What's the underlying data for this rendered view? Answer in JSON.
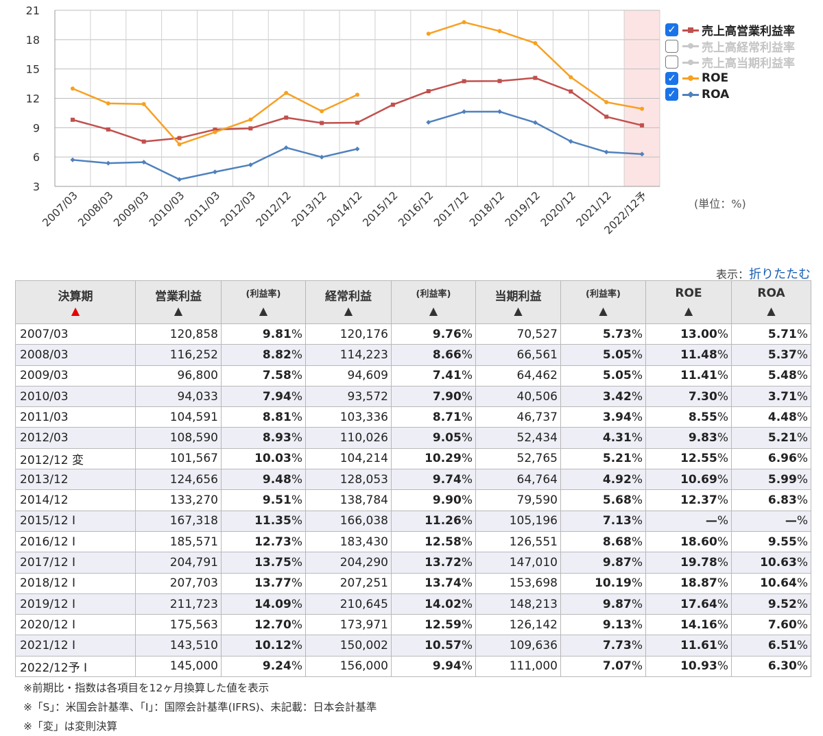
{
  "chart_data": {
    "type": "line",
    "categories": [
      "2007/03",
      "2008/03",
      "2009/03",
      "2010/03",
      "2011/03",
      "2012/03",
      "2012/12",
      "2013/12",
      "2014/12",
      "2015/12",
      "2016/12",
      "2017/12",
      "2018/12",
      "2019/12",
      "2020/12",
      "2021/12",
      "2022/12予"
    ],
    "ylim": [
      3,
      21
    ],
    "yticks": [
      3,
      6,
      9,
      12,
      15,
      18,
      21
    ],
    "grid": true,
    "highlight_category": "2022/12予",
    "series": [
      {
        "name": "売上高営業利益率",
        "color": "#c0504d",
        "visible": true,
        "values": [
          9.81,
          8.82,
          7.58,
          7.94,
          8.81,
          8.93,
          10.03,
          9.48,
          9.51,
          11.35,
          12.73,
          13.75,
          13.77,
          14.09,
          12.7,
          10.12,
          9.24
        ]
      },
      {
        "name": "売上高経常利益率",
        "color": "#c8c8c8",
        "visible": false,
        "values": [
          9.76,
          8.66,
          7.41,
          7.9,
          8.71,
          9.05,
          10.29,
          9.74,
          9.9,
          11.26,
          12.58,
          13.72,
          13.74,
          14.02,
          12.59,
          10.57,
          9.94
        ]
      },
      {
        "name": "売上高当期利益率",
        "color": "#c8c8c8",
        "visible": false,
        "values": [
          5.73,
          5.05,
          5.05,
          3.42,
          3.94,
          4.31,
          5.21,
          4.92,
          5.68,
          7.13,
          8.68,
          9.87,
          10.19,
          9.87,
          9.13,
          7.73,
          7.07
        ]
      },
      {
        "name": "ROE",
        "color": "#f7a021",
        "visible": true,
        "values": [
          13.0,
          11.48,
          11.41,
          7.3,
          8.55,
          9.83,
          12.55,
          10.69,
          12.37,
          null,
          18.6,
          19.78,
          18.87,
          17.64,
          14.16,
          11.61,
          10.93
        ]
      },
      {
        "name": "ROA",
        "color": "#4f81bd",
        "visible": true,
        "values": [
          5.71,
          5.37,
          5.48,
          3.71,
          4.48,
          5.21,
          6.96,
          5.99,
          6.83,
          null,
          9.55,
          10.63,
          10.64,
          9.52,
          7.6,
          6.51,
          6.3
        ]
      }
    ]
  },
  "unit_label": "(単位：%)",
  "display_toggle": {
    "label": "表示：",
    "link": "折りたたむ"
  },
  "table": {
    "headers": [
      {
        "label": "決算期",
        "arrow": "▲",
        "arrow_color": "#e60000"
      },
      {
        "label": "営業利益",
        "arrow": "▲"
      },
      {
        "label": "(利益率)",
        "arrow": "▲"
      },
      {
        "label": "経常利益",
        "arrow": "▲"
      },
      {
        "label": "(利益率)",
        "arrow": "▲"
      },
      {
        "label": "当期利益",
        "arrow": "▲"
      },
      {
        "label": "(利益率)",
        "arrow": "▲"
      },
      {
        "label": "ROE",
        "arrow": "▲"
      },
      {
        "label": "ROA",
        "arrow": "▲"
      }
    ],
    "rows": [
      [
        "2007/03",
        "120,858",
        "9.81",
        "120,176",
        "9.76",
        "70,527",
        "5.73",
        "13.00",
        "5.71"
      ],
      [
        "2008/03",
        "116,252",
        "8.82",
        "114,223",
        "8.66",
        "66,561",
        "5.05",
        "11.48",
        "5.37"
      ],
      [
        "2009/03",
        "96,800",
        "7.58",
        "94,609",
        "7.41",
        "64,462",
        "5.05",
        "11.41",
        "5.48"
      ],
      [
        "2010/03",
        "94,033",
        "7.94",
        "93,572",
        "7.90",
        "40,506",
        "3.42",
        "7.30",
        "3.71"
      ],
      [
        "2011/03",
        "104,591",
        "8.81",
        "103,336",
        "8.71",
        "46,737",
        "3.94",
        "8.55",
        "4.48"
      ],
      [
        "2012/03",
        "108,590",
        "8.93",
        "110,026",
        "9.05",
        "52,434",
        "4.31",
        "9.83",
        "5.21"
      ],
      [
        "2012/12 変",
        "101,567",
        "10.03",
        "104,214",
        "10.29",
        "52,765",
        "5.21",
        "12.55",
        "6.96"
      ],
      [
        "2013/12",
        "124,656",
        "9.48",
        "128,053",
        "9.74",
        "64,764",
        "4.92",
        "10.69",
        "5.99"
      ],
      [
        "2014/12",
        "133,270",
        "9.51",
        "138,784",
        "9.90",
        "79,590",
        "5.68",
        "12.37",
        "6.83"
      ],
      [
        "2015/12 I",
        "167,318",
        "11.35",
        "166,038",
        "11.26",
        "105,196",
        "7.13",
        "—",
        "—"
      ],
      [
        "2016/12 I",
        "185,571",
        "12.73",
        "183,430",
        "12.58",
        "126,551",
        "8.68",
        "18.60",
        "9.55"
      ],
      [
        "2017/12 I",
        "204,791",
        "13.75",
        "204,290",
        "13.72",
        "147,010",
        "9.87",
        "19.78",
        "10.63"
      ],
      [
        "2018/12 I",
        "207,703",
        "13.77",
        "207,251",
        "13.74",
        "153,698",
        "10.19",
        "18.87",
        "10.64"
      ],
      [
        "2019/12 I",
        "211,723",
        "14.09",
        "210,645",
        "14.02",
        "148,213",
        "9.87",
        "17.64",
        "9.52"
      ],
      [
        "2020/12 I",
        "175,563",
        "12.70",
        "173,971",
        "12.59",
        "126,142",
        "9.13",
        "14.16",
        "7.60"
      ],
      [
        "2021/12 I",
        "143,510",
        "10.12",
        "150,002",
        "10.57",
        "109,636",
        "7.73",
        "11.61",
        "6.51"
      ],
      [
        "2022/12予 I",
        "145,000",
        "9.24",
        "156,000",
        "9.94",
        "111,000",
        "7.07",
        "10.93",
        "6.30"
      ]
    ]
  },
  "notes": [
    "※前期比・指数は各項目を12ヶ月換算した値を表示",
    "※「S」：米国会計基準、「I」：国際会計基準(IFRS)、未記載：日本会計基準",
    "※「変」は変則決算"
  ]
}
